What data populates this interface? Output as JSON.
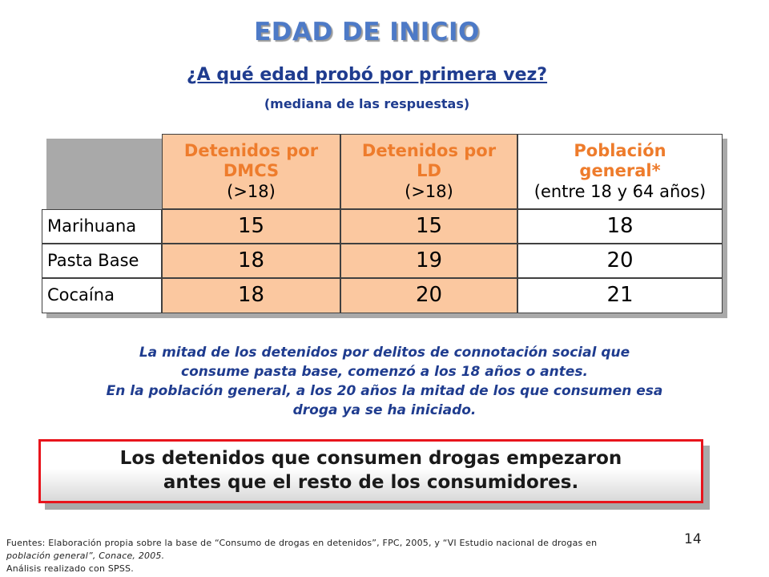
{
  "slide": {
    "title": "EDAD DE INICIO",
    "question": "¿A qué edad probó por primera vez?",
    "subtitle": "(mediana de las respuestas)"
  },
  "table": {
    "columns": [
      {
        "line1": "Detenidos por",
        "line2": "DMCS",
        "line3": "(>18)"
      },
      {
        "line1": "Detenidos por",
        "line2": "LD",
        "line3": "(>18)"
      },
      {
        "line1": "Población",
        "line2": "general*",
        "line3": "(entre 18 y 64 años)"
      }
    ],
    "rows": [
      {
        "label": "Marihuana",
        "values": [
          "15",
          "15",
          "18"
        ]
      },
      {
        "label": "Pasta Base",
        "values": [
          "18",
          "19",
          "20"
        ]
      },
      {
        "label": "Cocaína",
        "values": [
          "18",
          "20",
          "21"
        ]
      }
    ],
    "colors": {
      "header_fill": "#fbc8a0",
      "header_text": "#ee7c2c"
    }
  },
  "note": {
    "line1": "La mitad de los detenidos por delitos de connotación social  que",
    "line2": "consume pasta base, comenzó a los 18 años o antes.",
    "line3": "En la población general, a los 20 años la mitad de los que consumen esa",
    "line4": "droga ya se ha iniciado."
  },
  "callout": {
    "line1": "Los detenidos que consumen drogas empezaron",
    "line2": "antes que el resto de los consumidores."
  },
  "source": {
    "line1": "Fuentes: Elaboración propia sobre la base de “Consumo de drogas en detenidos”, FPC, 2005, y “VI Estudio nacional de drogas en",
    "line2": "población general”, Conace, 2005.",
    "line3": "Análisis realizado con SPSS."
  },
  "page_number": "14"
}
